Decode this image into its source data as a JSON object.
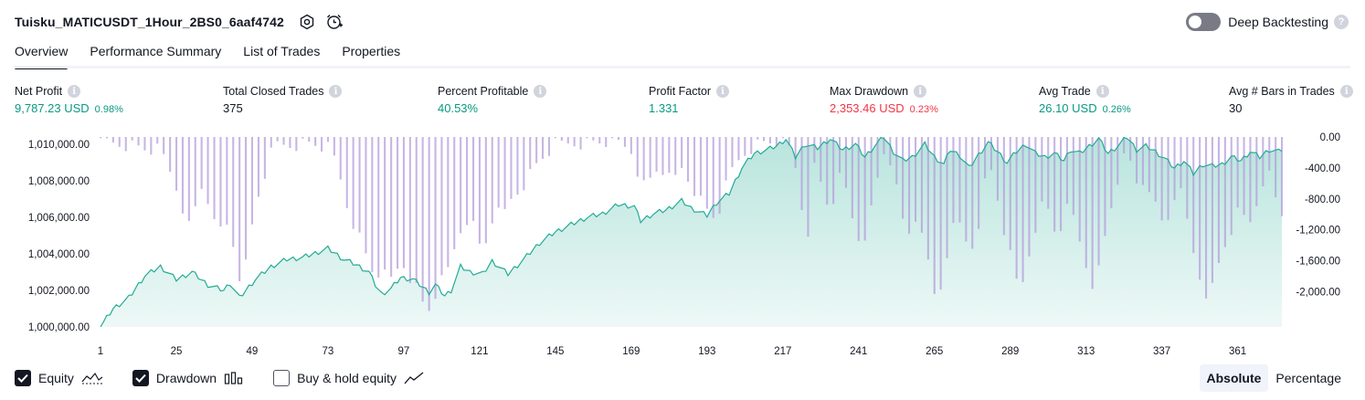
{
  "header": {
    "strategy_name": "Tuisku_MATICUSDT_1Hour_2BS0_6aaf4742",
    "deep_backtesting_label": "Deep Backtesting",
    "deep_backtesting_enabled": false,
    "help_glyph": "?"
  },
  "tabs": [
    {
      "label": "Overview",
      "active": true
    },
    {
      "label": "Performance Summary",
      "active": false
    },
    {
      "label": "List of Trades",
      "active": false
    },
    {
      "label": "Properties",
      "active": false
    }
  ],
  "metrics": {
    "info_glyph": "i",
    "net_profit": {
      "label": "Net Profit",
      "value": "9,787.23 USD",
      "pct": "0.98%"
    },
    "total_closed_trades": {
      "label": "Total Closed Trades",
      "value": "375"
    },
    "percent_profitable": {
      "label": "Percent Profitable",
      "value": "40.53%"
    },
    "profit_factor": {
      "label": "Profit Factor",
      "value": "1.331"
    },
    "max_drawdown": {
      "label": "Max Drawdown",
      "value": "2,353.46 USD",
      "pct": "0.23%"
    },
    "avg_trade": {
      "label": "Avg Trade",
      "value": "26.10 USD",
      "pct": "0.26%"
    },
    "avg_bars": {
      "label": "Avg # Bars in Trades",
      "value": "30"
    }
  },
  "colors": {
    "profit": "#089981",
    "loss": "#f23645",
    "equity_line": "#22ab94",
    "equity_fill": "#22ab94",
    "drawdown_bar": "#b39ddb"
  },
  "chart_data": {
    "type": "area",
    "equity_axis": {
      "ticks": [
        "1,000,000.00",
        "1,002,000.00",
        "1,004,000.00",
        "1,006,000.00",
        "1,008,000.00",
        "1,010,000.00"
      ],
      "range": [
        1000000,
        1010500
      ]
    },
    "drawdown_axis": {
      "ticks": [
        "0.00",
        "-400.00",
        "-800.00",
        "-1,200.00",
        "-1,600.00",
        "-2,000.00"
      ],
      "range": [
        -2360,
        0
      ]
    },
    "x_ticks": [
      "1",
      "25",
      "49",
      "73",
      "97",
      "121",
      "145",
      "169",
      "193",
      "217",
      "241",
      "265",
      "289",
      "313",
      "337",
      "361"
    ],
    "trade_count": 375,
    "equity_anchors": [
      [
        1,
        1000000
      ],
      [
        5,
        1001000
      ],
      [
        10,
        1001600
      ],
      [
        15,
        1002800
      ],
      [
        20,
        1003300
      ],
      [
        25,
        1002600
      ],
      [
        30,
        1003000
      ],
      [
        35,
        1002300
      ],
      [
        40,
        1002000
      ],
      [
        42,
        1002400
      ],
      [
        45,
        1001600
      ],
      [
        50,
        1002600
      ],
      [
        55,
        1003300
      ],
      [
        60,
        1003700
      ],
      [
        65,
        1003800
      ],
      [
        70,
        1004100
      ],
      [
        73,
        1004300
      ],
      [
        78,
        1003700
      ],
      [
        82,
        1003400
      ],
      [
        86,
        1003000
      ],
      [
        88,
        1002300
      ],
      [
        90,
        1001800
      ],
      [
        93,
        1002100
      ],
      [
        96,
        1002700
      ],
      [
        100,
        1002600
      ],
      [
        105,
        1001900
      ],
      [
        107,
        1002300
      ],
      [
        110,
        1001700
      ],
      [
        112,
        1002000
      ],
      [
        115,
        1003300
      ],
      [
        118,
        1003000
      ],
      [
        122,
        1002900
      ],
      [
        125,
        1003600
      ],
      [
        130,
        1002900
      ],
      [
        135,
        1003700
      ],
      [
        140,
        1004600
      ],
      [
        145,
        1005200
      ],
      [
        150,
        1005600
      ],
      [
        155,
        1006000
      ],
      [
        160,
        1006200
      ],
      [
        165,
        1006700
      ],
      [
        170,
        1006600
      ],
      [
        172,
        1005800
      ],
      [
        176,
        1006200
      ],
      [
        180,
        1006400
      ],
      [
        185,
        1006900
      ],
      [
        188,
        1006500
      ],
      [
        193,
        1006100
      ],
      [
        196,
        1006800
      ],
      [
        200,
        1007300
      ],
      [
        204,
        1008700
      ],
      [
        208,
        1009500
      ],
      [
        212,
        1009700
      ],
      [
        215,
        1009900
      ],
      [
        218,
        1010300
      ],
      [
        221,
        1009300
      ],
      [
        224,
        1010000
      ],
      [
        228,
        1009800
      ],
      [
        232,
        1010300
      ],
      [
        236,
        1009700
      ],
      [
        240,
        1010000
      ],
      [
        243,
        1009300
      ],
      [
        246,
        1009900
      ],
      [
        249,
        1010400
      ],
      [
        252,
        1009600
      ],
      [
        255,
        1009100
      ],
      [
        258,
        1009300
      ],
      [
        262,
        1010000
      ],
      [
        265,
        1009300
      ],
      [
        268,
        1008900
      ],
      [
        270,
        1009700
      ],
      [
        273,
        1009400
      ],
      [
        276,
        1008700
      ],
      [
        278,
        1009200
      ],
      [
        282,
        1010100
      ],
      [
        285,
        1009600
      ],
      [
        288,
        1009000
      ],
      [
        291,
        1009600
      ],
      [
        294,
        1010000
      ],
      [
        297,
        1009500
      ],
      [
        300,
        1009300
      ],
      [
        303,
        1009500
      ],
      [
        306,
        1009100
      ],
      [
        308,
        1009700
      ],
      [
        311,
        1009500
      ],
      [
        314,
        1009900
      ],
      [
        317,
        1010300
      ],
      [
        320,
        1009500
      ],
      [
        323,
        1009900
      ],
      [
        326,
        1010400
      ],
      [
        329,
        1009700
      ],
      [
        332,
        1009900
      ],
      [
        335,
        1009600
      ],
      [
        338,
        1009200
      ],
      [
        341,
        1008700
      ],
      [
        344,
        1009100
      ],
      [
        347,
        1008400
      ],
      [
        350,
        1008900
      ],
      [
        353,
        1008800
      ],
      [
        356,
        1008900
      ],
      [
        359,
        1009300
      ],
      [
        362,
        1009100
      ],
      [
        365,
        1009600
      ],
      [
        368,
        1009300
      ],
      [
        371,
        1009700
      ],
      [
        374,
        1009600
      ],
      [
        375,
        1009700
      ]
    ],
    "drawdown_anchors": [
      [
        1,
        -50
      ],
      [
        10,
        -100
      ],
      [
        15,
        -150
      ],
      [
        20,
        -180
      ],
      [
        22,
        -350
      ],
      [
        25,
        -650
      ],
      [
        27,
        -900
      ],
      [
        29,
        -1150
      ],
      [
        30,
        -1050
      ],
      [
        33,
        -650
      ],
      [
        35,
        -800
      ],
      [
        37,
        -1150
      ],
      [
        39,
        -1200
      ],
      [
        42,
        -1100
      ],
      [
        44,
        -1650
      ],
      [
        46,
        -1900
      ],
      [
        48,
        -1400
      ],
      [
        50,
        -900
      ],
      [
        52,
        -600
      ],
      [
        54,
        -350
      ],
      [
        56,
        -100
      ],
      [
        60,
        -100
      ],
      [
        68,
        -80
      ],
      [
        73,
        -150
      ],
      [
        76,
        -350
      ],
      [
        78,
        -750
      ],
      [
        80,
        -1000
      ],
      [
        82,
        -1200
      ],
      [
        84,
        -1400
      ],
      [
        86,
        -1650
      ],
      [
        88,
        -1800
      ],
      [
        90,
        -1700
      ],
      [
        92,
        -1900
      ],
      [
        94,
        -1800
      ],
      [
        96,
        -1600
      ],
      [
        98,
        -1700
      ],
      [
        100,
        -1900
      ],
      [
        102,
        -2000
      ],
      [
        104,
        -2300
      ],
      [
        106,
        -2150
      ],
      [
        108,
        -1900
      ],
      [
        110,
        -1850
      ],
      [
        112,
        -1600
      ],
      [
        114,
        -1300
      ],
      [
        116,
        -1100
      ],
      [
        118,
        -1000
      ],
      [
        120,
        -1300
      ],
      [
        122,
        -1500
      ],
      [
        124,
        -1200
      ],
      [
        126,
        -900
      ],
      [
        128,
        -1100
      ],
      [
        130,
        -850
      ],
      [
        133,
        -700
      ],
      [
        135,
        -600
      ],
      [
        140,
        -300
      ],
      [
        145,
        -100
      ],
      [
        150,
        -80
      ],
      [
        160,
        -60
      ],
      [
        165,
        -80
      ],
      [
        170,
        -200
      ],
      [
        172,
        -650
      ],
      [
        174,
        -600
      ],
      [
        176,
        -500
      ],
      [
        178,
        -350
      ],
      [
        180,
        -500
      ],
      [
        182,
        -600
      ],
      [
        185,
        -400
      ],
      [
        188,
        -600
      ],
      [
        190,
        -750
      ],
      [
        192,
        -900
      ],
      [
        194,
        -1000
      ],
      [
        196,
        -1050
      ],
      [
        198,
        -800
      ],
      [
        200,
        -500
      ],
      [
        203,
        -300
      ],
      [
        206,
        -150
      ],
      [
        210,
        -80
      ],
      [
        215,
        -50
      ],
      [
        218,
        -30
      ],
      [
        221,
        -400
      ],
      [
        223,
        -900
      ],
      [
        225,
        -1200
      ],
      [
        227,
        -400
      ],
      [
        230,
        -700
      ],
      [
        232,
        -1000
      ],
      [
        234,
        -600
      ],
      [
        236,
        -500
      ],
      [
        238,
        -900
      ],
      [
        240,
        -1200
      ],
      [
        242,
        -1400
      ],
      [
        244,
        -1100
      ],
      [
        246,
        -800
      ],
      [
        248,
        -300
      ],
      [
        250,
        -100
      ],
      [
        252,
        -500
      ],
      [
        254,
        -900
      ],
      [
        256,
        -1300
      ],
      [
        258,
        -1200
      ],
      [
        260,
        -900
      ],
      [
        262,
        -1400
      ],
      [
        264,
        -1900
      ],
      [
        266,
        -2200
      ],
      [
        268,
        -1700
      ],
      [
        270,
        -1300
      ],
      [
        272,
        -1100
      ],
      [
        274,
        -1200
      ],
      [
        276,
        -1500
      ],
      [
        278,
        -1300
      ],
      [
        280,
        -900
      ],
      [
        282,
        -300
      ],
      [
        284,
        -600
      ],
      [
        286,
        -1000
      ],
      [
        288,
        -1400
      ],
      [
        290,
        -1700
      ],
      [
        292,
        -2050
      ],
      [
        294,
        -1700
      ],
      [
        296,
        -1300
      ],
      [
        298,
        -1000
      ],
      [
        300,
        -800
      ],
      [
        302,
        -1100
      ],
      [
        304,
        -1300
      ],
      [
        306,
        -1000
      ],
      [
        308,
        -900
      ],
      [
        310,
        -1200
      ],
      [
        312,
        -1500
      ],
      [
        314,
        -1800
      ],
      [
        316,
        -1950
      ],
      [
        318,
        -1500
      ],
      [
        320,
        -1100
      ],
      [
        322,
        -700
      ],
      [
        324,
        -400
      ],
      [
        326,
        -200
      ],
      [
        328,
        -500
      ],
      [
        330,
        -700
      ],
      [
        332,
        -450
      ],
      [
        334,
        -800
      ],
      [
        336,
        -1000
      ],
      [
        338,
        -1200
      ],
      [
        340,
        -900
      ],
      [
        342,
        -600
      ],
      [
        344,
        -900
      ],
      [
        346,
        -1300
      ],
      [
        348,
        -1700
      ],
      [
        350,
        -1900
      ],
      [
        352,
        -2100
      ],
      [
        354,
        -1800
      ],
      [
        356,
        -1500
      ],
      [
        358,
        -1300
      ],
      [
        360,
        -1100
      ],
      [
        362,
        -900
      ],
      [
        364,
        -1200
      ],
      [
        366,
        -1000
      ],
      [
        368,
        -700
      ],
      [
        370,
        -400
      ],
      [
        372,
        -600
      ],
      [
        374,
        -1000
      ],
      [
        375,
        -1000
      ]
    ]
  },
  "legend": [
    {
      "label": "Equity",
      "checked": true,
      "icon": "equity-line-icon"
    },
    {
      "label": "Drawdown",
      "checked": true,
      "icon": "drawdown-bars-icon"
    },
    {
      "label": "Buy & hold equity",
      "checked": false,
      "icon": "buy-hold-line-icon"
    }
  ],
  "view_modes": [
    {
      "label": "Absolute",
      "active": true
    },
    {
      "label": "Percentage",
      "active": false
    }
  ]
}
